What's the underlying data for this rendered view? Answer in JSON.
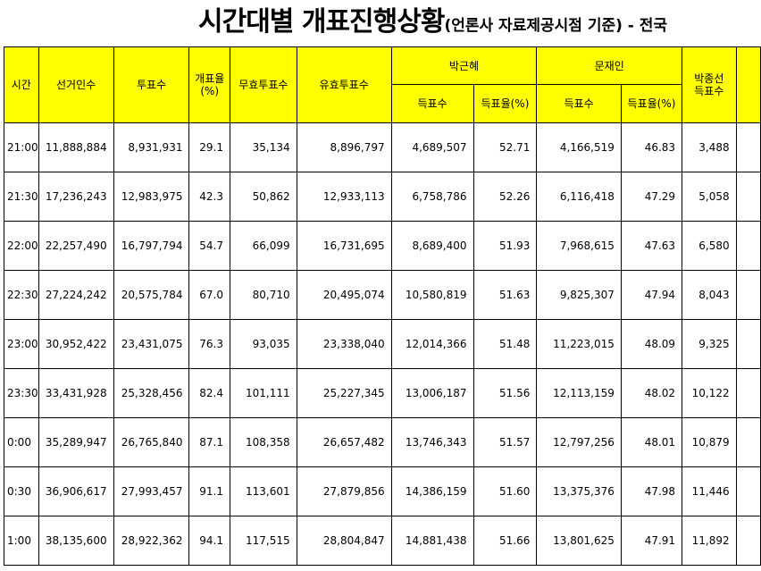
{
  "title": {
    "main": "시간대별 개표진행상황",
    "sub": "(언론사 자료제공시점 기준) - 전국"
  },
  "headers": {
    "time": "시간",
    "electorate": "선거인수",
    "votes": "투표수",
    "count_rate": "개표율\n(%)",
    "invalid": "무효투표수",
    "valid": "유효투표수",
    "candidates": [
      "박근혜",
      "문재인"
    ],
    "votes_got": "득표수",
    "vote_share": "득표율(%)",
    "third_candidate": "박종선\n득표수"
  },
  "rows": [
    {
      "time": "21:00",
      "electorate": "11,888,884",
      "votes": "8,931,931",
      "rate": "29.1",
      "invalid": "35,134",
      "valid": "8,896,797",
      "park_votes": "4,689,507",
      "park_pct": "52.71",
      "moon_votes": "4,166,519",
      "moon_pct": "46.83",
      "third": "3,488"
    },
    {
      "time": "21:30",
      "electorate": "17,236,243",
      "votes": "12,983,975",
      "rate": "42.3",
      "invalid": "50,862",
      "valid": "12,933,113",
      "park_votes": "6,758,786",
      "park_pct": "52.26",
      "moon_votes": "6,116,418",
      "moon_pct": "47.29",
      "third": "5,058"
    },
    {
      "time": "22:00",
      "electorate": "22,257,490",
      "votes": "16,797,794",
      "rate": "54.7",
      "invalid": "66,099",
      "valid": "16,731,695",
      "park_votes": "8,689,400",
      "park_pct": "51.93",
      "moon_votes": "7,968,615",
      "moon_pct": "47.63",
      "third": "6,580"
    },
    {
      "time": "22:30",
      "electorate": "27,224,242",
      "votes": "20,575,784",
      "rate": "67.0",
      "invalid": "80,710",
      "valid": "20,495,074",
      "park_votes": "10,580,819",
      "park_pct": "51.63",
      "moon_votes": "9,825,307",
      "moon_pct": "47.94",
      "third": "8,043"
    },
    {
      "time": "23:00",
      "electorate": "30,952,422",
      "votes": "23,431,075",
      "rate": "76.3",
      "invalid": "93,035",
      "valid": "23,338,040",
      "park_votes": "12,014,366",
      "park_pct": "51.48",
      "moon_votes": "11,223,015",
      "moon_pct": "48.09",
      "third": "9,325"
    },
    {
      "time": "23:30",
      "electorate": "33,431,928",
      "votes": "25,328,456",
      "rate": "82.4",
      "invalid": "101,111",
      "valid": "25,227,345",
      "park_votes": "13,006,187",
      "park_pct": "51.56",
      "moon_votes": "12,113,159",
      "moon_pct": "48.02",
      "third": "10,122"
    },
    {
      "time": "0:00",
      "electorate": "35,289,947",
      "votes": "26,765,840",
      "rate": "87.1",
      "invalid": "108,358",
      "valid": "26,657,482",
      "park_votes": "13,746,343",
      "park_pct": "51.57",
      "moon_votes": "12,797,256",
      "moon_pct": "48.01",
      "third": "10,879"
    },
    {
      "time": "0:30",
      "electorate": "36,906,617",
      "votes": "27,993,457",
      "rate": "91.1",
      "invalid": "113,601",
      "valid": "27,879,856",
      "park_votes": "14,386,159",
      "park_pct": "51.60",
      "moon_votes": "13,375,376",
      "moon_pct": "47.98",
      "third": "11,446"
    },
    {
      "time": "1:00",
      "electorate": "38,135,600",
      "votes": "28,922,362",
      "rate": "94.1",
      "invalid": "117,515",
      "valid": "28,804,847",
      "park_votes": "14,881,438",
      "park_pct": "51.66",
      "moon_votes": "13,801,625",
      "moon_pct": "47.91",
      "third": "11,892"
    }
  ]
}
